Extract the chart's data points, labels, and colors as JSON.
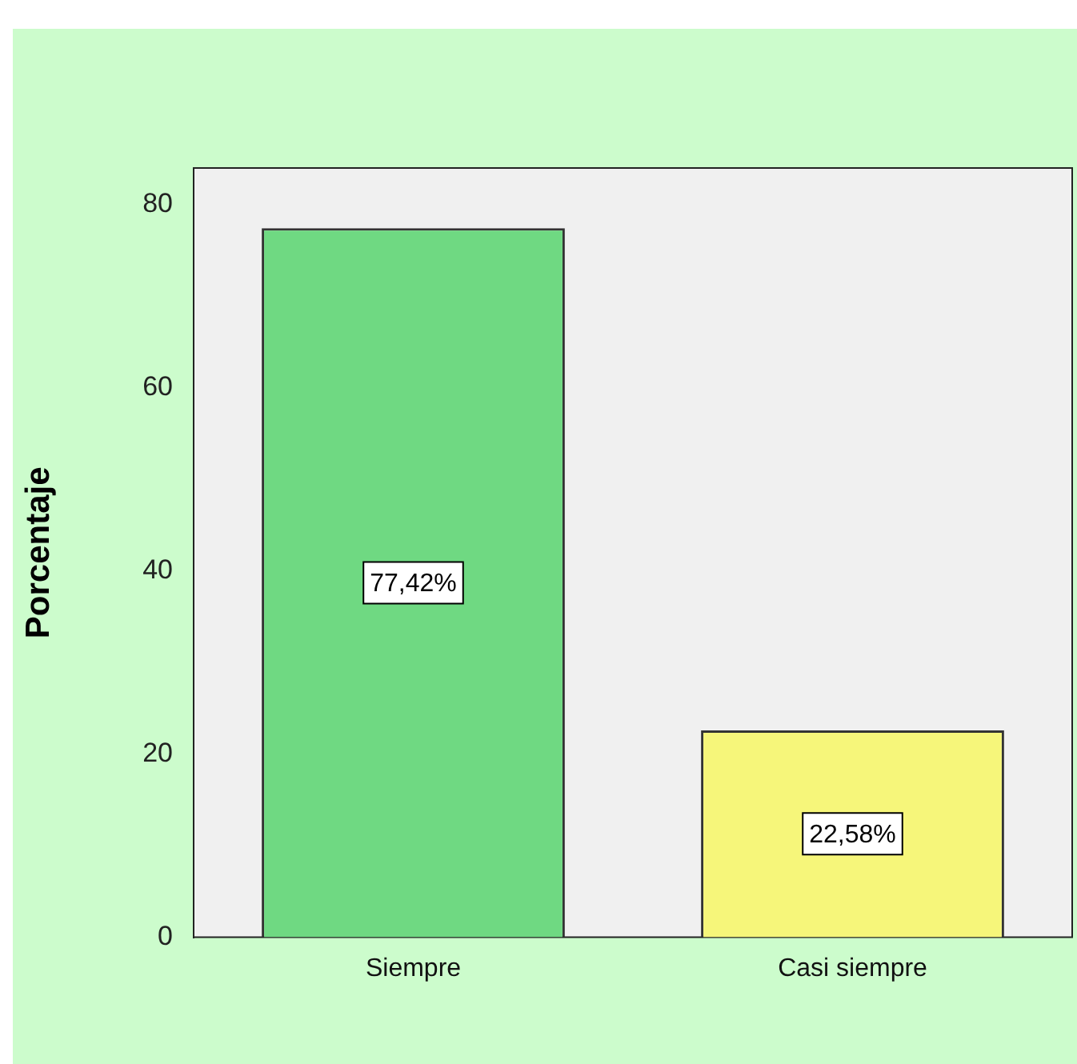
{
  "chart_data": {
    "type": "bar",
    "ylabel": "Porcentaje",
    "categories": [
      "Siempre",
      "Casi siempre"
    ],
    "values": [
      77.42,
      22.58
    ],
    "colors": [
      "#6fd982",
      "#f6f67a"
    ],
    "value_labels": [
      "77,42%",
      "22,58%"
    ],
    "ylim": [
      0,
      84
    ],
    "yticks": [
      0,
      20,
      40,
      60,
      80
    ],
    "grid": false,
    "legend": false
  }
}
